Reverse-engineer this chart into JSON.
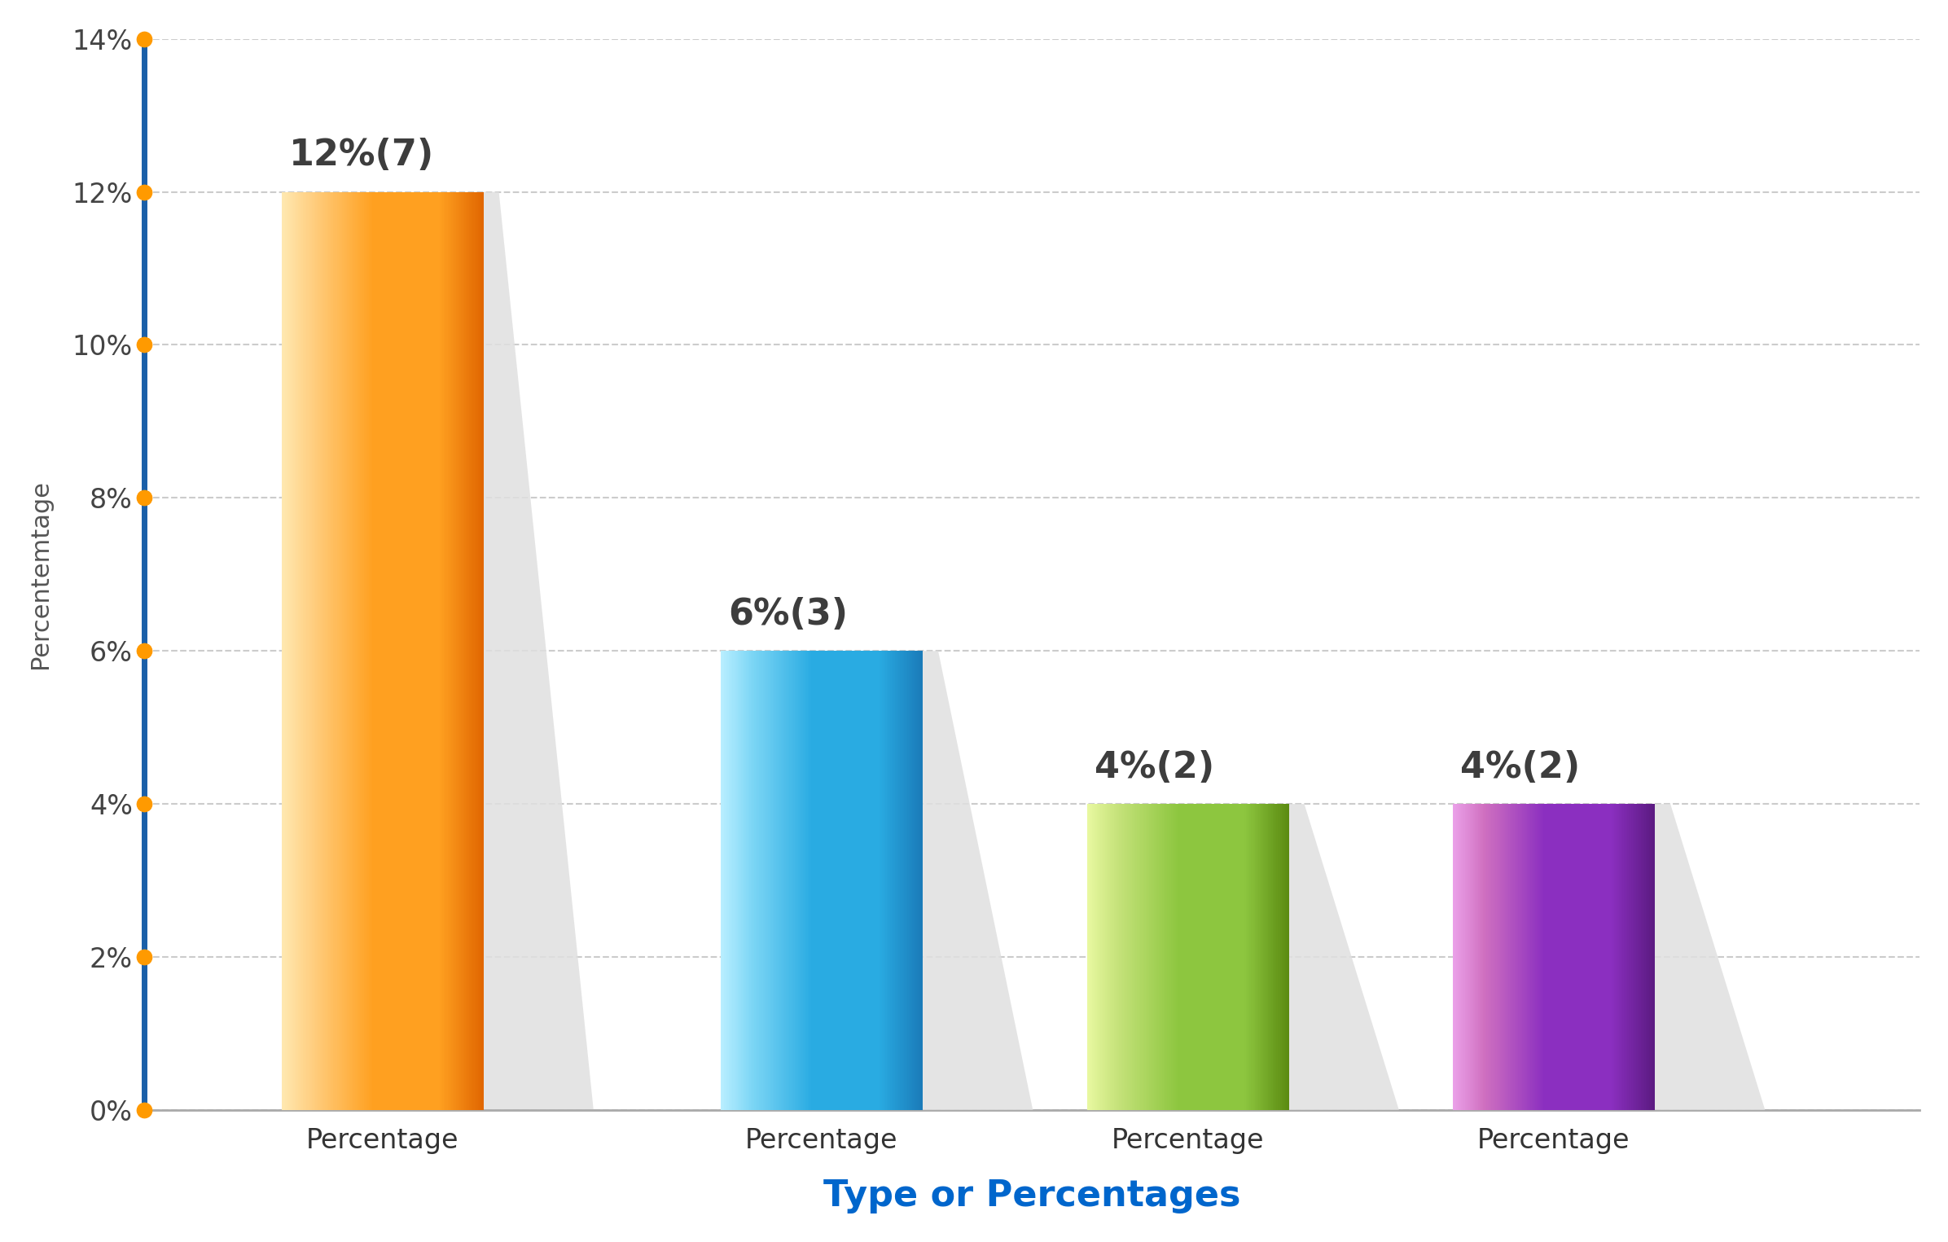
{
  "categories": [
    "Percentage",
    "Percentage",
    "Percentage",
    "Percentage"
  ],
  "values": [
    12,
    6,
    4,
    4
  ],
  "labels": [
    "12%(7)",
    "6%(3)",
    "4%(2)",
    "4%(2)"
  ],
  "bar_colors_light": [
    "#FFCE80",
    "#7DD6F5",
    "#C5E27A",
    "#D070C0"
  ],
  "bar_colors_main": [
    "#FFA020",
    "#29ABE2",
    "#8DC63F",
    "#8B2FC0"
  ],
  "bar_colors_dark": [
    "#E06500",
    "#1A7AB8",
    "#5A8A10",
    "#5A1A80"
  ],
  "bar_highlight": [
    "#FFE8B0",
    "#B8EEFF",
    "#E8F8A0",
    "#EAA0E8"
  ],
  "shadow_color": "#E0E0E0",
  "shadow_color2": "#F0F0F0",
  "xlabel": "Type or Percentages",
  "ylabel": "Percentemtage",
  "ylim": [
    0,
    14
  ],
  "yticks": [
    0,
    2,
    4,
    6,
    8,
    10,
    12,
    14
  ],
  "ytick_labels": [
    "0%",
    "2%",
    "4%",
    "6%",
    "8%",
    "10%",
    "12%",
    "14%"
  ],
  "grid_color": "#CCCCCC",
  "axis_spine_color": "#AAAAAA",
  "left_spine_color": "#1A5FA8",
  "dot_color": "#FF9A00",
  "xlabel_color": "#0066CC",
  "ylabel_color": "#555555",
  "label_fontsize": 24,
  "value_label_fontsize": 32,
  "xlabel_fontsize": 32,
  "ylabel_fontsize": 22,
  "background_color": "#FFFFFF",
  "figsize": [
    23.92,
    15.25
  ],
  "dpi": 100
}
